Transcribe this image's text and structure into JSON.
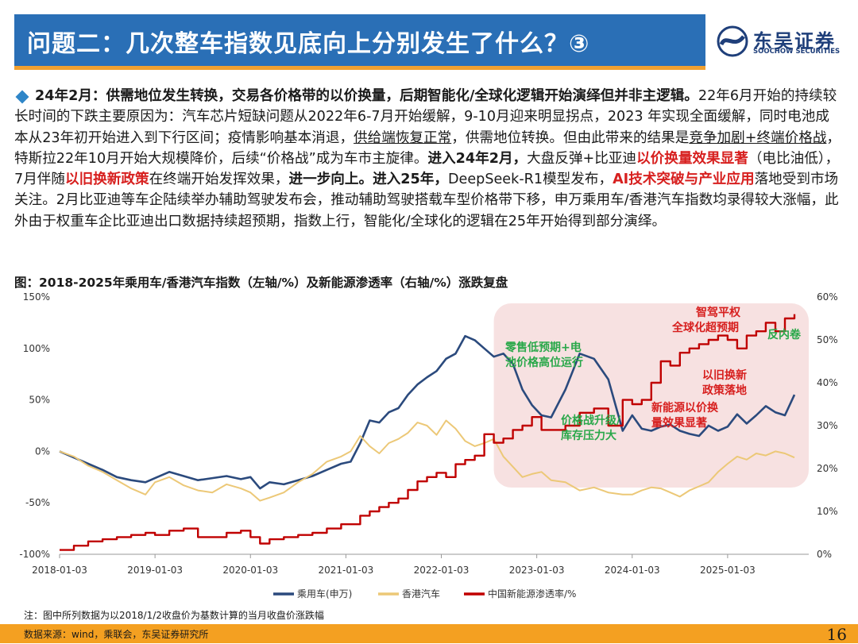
{
  "header": {
    "title": "问题二：几次整车指数见底向上分别发生了什么？③",
    "logo_cn": "东吴证券",
    "logo_en": "SOOCHOW SECURITIES"
  },
  "body": {
    "p1": "24年2月：供需地位发生转换，交易各价格带的以价换量，后期智能化/全球化逻辑开始演绎但并非主逻辑。",
    "p2": "22年6月开始的持续较长时间的下跌主要原因为：汽车芯片短缺问题从2022年6-7月开始缓解，9-10月迎来明显拐点，2023 年实现全面缓解，同时电池成本从23年初开始进入到下行区间；疫情影响基本消退，",
    "p3": "供给端恢复正常",
    "p4": "，供需地位转换。但由此带来的结果是",
    "p5": "竞争加剧+终端价格战",
    "p6": "，特斯拉22年10月开始大规模降价，后续“价格战”成为车市主旋律。",
    "p7": "进入24年2月，",
    "p8": "大盘反弹+比亚迪",
    "p9": "以价换量效果显著",
    "p10": "（电比油低），7月伴随",
    "p11": "以旧换新政策",
    "p12": "在终端开始发挥效果，",
    "p13": "进一步向上。进入25年，",
    "p14": "DeepSeek-R1模型发布，",
    "p15": "AI技术突破与产业应用",
    "p16": "落地受到市场关注。2月比亚迪等车企陆续举办辅助驾驶发布会，推动辅助驾驶搭载车型价格带下移，申万乘用车/香港汽车指数均录得较大涨幅，此外由于权重车企比亚迪出口数据持续超预期，指数上行，智能化/全球化的逻辑在25年开始得到部分演绎。"
  },
  "figure_title": "图：2018-2025年乘用车/香港汽车指数（左轴/%）及新能源渗透率（右轴/%）涨跌复盘",
  "note": "注：图中所列数据为以2018/1/2收盘价为基数计算的当月收盘价涨跌幅",
  "source": "数据来源：wind，乘联会，东吴证券研究所",
  "page_number": "16",
  "colors": {
    "title_bg": "#2a6fb6",
    "accent": "#f4a021",
    "red_text": "#d7201f",
    "series_passenger": "#2b4a7d",
    "series_hk": "#ecc877",
    "series_nev": "#c00000",
    "highlight_fill": "#f6dcdc",
    "annotation_green": "#2aa84a",
    "annotation_red": "#d7201f"
  },
  "chart_data": {
    "type": "line",
    "x_ticks": [
      "2018-01-03",
      "2019-01-03",
      "2020-01-03",
      "2021-01-03",
      "2022-01-03",
      "2023-01-03",
      "2024-01-03",
      "2025-01-03"
    ],
    "y_left_ticks": [
      "150%",
      "100%",
      "50%",
      "0%",
      "-50%",
      "-100%"
    ],
    "y_left_range": [
      -100,
      150
    ],
    "y_right_ticks": [
      "60%",
      "50%",
      "40%",
      "30%",
      "20%",
      "10%",
      "0%"
    ],
    "y_right_range": [
      0,
      60
    ],
    "legend_position": "bottom",
    "series": [
      {
        "name": "乘用车(申万)",
        "axis": "left",
        "x": [
          2018.0,
          2018.15,
          2018.3,
          2018.45,
          2018.6,
          2018.75,
          2018.9,
          2019.0,
          2019.15,
          2019.3,
          2019.45,
          2019.6,
          2019.75,
          2019.9,
          2020.0,
          2020.1,
          2020.2,
          2020.35,
          2020.5,
          2020.65,
          2020.8,
          2020.95,
          2021.05,
          2021.15,
          2021.25,
          2021.35,
          2021.45,
          2021.55,
          2021.65,
          2021.75,
          2021.85,
          2021.95,
          2022.05,
          2022.15,
          2022.25,
          2022.35,
          2022.45,
          2022.55,
          2022.65,
          2022.75,
          2022.85,
          2022.95,
          2023.05,
          2023.15,
          2023.3,
          2023.45,
          2023.6,
          2023.75,
          2023.9,
          2024.0,
          2024.1,
          2024.2,
          2024.3,
          2024.4,
          2024.5,
          2024.6,
          2024.7,
          2024.8,
          2024.9,
          2025.0,
          2025.1,
          2025.2,
          2025.3,
          2025.4,
          2025.5,
          2025.6,
          2025.7
        ],
        "values": [
          0,
          -6,
          -12,
          -18,
          -25,
          -28,
          -30,
          -26,
          -20,
          -24,
          -28,
          -26,
          -24,
          -27,
          -25,
          -36,
          -30,
          -32,
          -28,
          -24,
          -18,
          -12,
          -10,
          8,
          30,
          28,
          38,
          42,
          55,
          65,
          72,
          78,
          90,
          95,
          112,
          108,
          100,
          92,
          95,
          85,
          60,
          45,
          35,
          33,
          60,
          95,
          90,
          70,
          20,
          35,
          22,
          20,
          24,
          26,
          20,
          17,
          15,
          25,
          20,
          24,
          36,
          27,
          35,
          44,
          38,
          35,
          55
        ]
      },
      {
        "name": "香港汽车",
        "axis": "left",
        "x": [
          2018.0,
          2018.15,
          2018.3,
          2018.45,
          2018.6,
          2018.75,
          2018.9,
          2019.0,
          2019.15,
          2019.3,
          2019.45,
          2019.6,
          2019.75,
          2019.9,
          2020.0,
          2020.1,
          2020.2,
          2020.35,
          2020.5,
          2020.65,
          2020.8,
          2020.95,
          2021.05,
          2021.15,
          2021.25,
          2021.35,
          2021.45,
          2021.55,
          2021.65,
          2021.75,
          2021.85,
          2021.95,
          2022.05,
          2022.15,
          2022.25,
          2022.35,
          2022.45,
          2022.55,
          2022.65,
          2022.75,
          2022.85,
          2022.95,
          2023.05,
          2023.15,
          2023.3,
          2023.45,
          2023.6,
          2023.75,
          2023.9,
          2024.0,
          2024.1,
          2024.2,
          2024.3,
          2024.4,
          2024.5,
          2024.6,
          2024.7,
          2024.8,
          2024.9,
          2025.0,
          2025.1,
          2025.2,
          2025.3,
          2025.4,
          2025.5,
          2025.6,
          2025.7
        ],
        "values": [
          0,
          -5,
          -14,
          -20,
          -28,
          -36,
          -42,
          -30,
          -25,
          -33,
          -38,
          -40,
          -32,
          -36,
          -40,
          -48,
          -45,
          -40,
          -30,
          -22,
          -10,
          -5,
          0,
          15,
          5,
          -2,
          8,
          12,
          18,
          28,
          25,
          16,
          30,
          22,
          10,
          5,
          8,
          12,
          -5,
          -15,
          -25,
          -22,
          -20,
          -28,
          -30,
          -38,
          -35,
          -40,
          -42,
          -42,
          -38,
          -35,
          -36,
          -40,
          -44,
          -38,
          -34,
          -30,
          -20,
          -12,
          -5,
          -8,
          -2,
          -4,
          0,
          -2,
          -6
        ]
      },
      {
        "name": "中国新能源渗透率/%",
        "axis": "right",
        "x": [
          2018.0,
          2018.15,
          2018.3,
          2018.45,
          2018.6,
          2018.75,
          2018.9,
          2019.0,
          2019.15,
          2019.3,
          2019.45,
          2019.6,
          2019.75,
          2019.9,
          2020.0,
          2020.1,
          2020.2,
          2020.35,
          2020.5,
          2020.65,
          2020.8,
          2020.95,
          2021.05,
          2021.15,
          2021.25,
          2021.35,
          2021.45,
          2021.55,
          2021.65,
          2021.75,
          2021.85,
          2021.95,
          2022.05,
          2022.15,
          2022.25,
          2022.35,
          2022.45,
          2022.55,
          2022.65,
          2022.75,
          2022.85,
          2022.95,
          2023.05,
          2023.15,
          2023.3,
          2023.45,
          2023.6,
          2023.75,
          2023.9,
          2024.0,
          2024.1,
          2024.2,
          2024.3,
          2024.4,
          2024.5,
          2024.6,
          2024.7,
          2024.8,
          2024.9,
          2025.0,
          2025.1,
          2025.2,
          2025.3,
          2025.4,
          2025.5,
          2025.6,
          2025.7
        ],
        "values": [
          1,
          2,
          3,
          3.5,
          4,
          4.5,
          5,
          4.5,
          5.5,
          6,
          4,
          4,
          5,
          5.5,
          4,
          2.5,
          3.5,
          4,
          4.5,
          5,
          6,
          7,
          7,
          9,
          10,
          11,
          12,
          13,
          15,
          17,
          18,
          19,
          18,
          21,
          22,
          23,
          28,
          26,
          27,
          29,
          30,
          32,
          29,
          29,
          30,
          33,
          34,
          30,
          36,
          35,
          36,
          40,
          45,
          44,
          47,
          48,
          49,
          50,
          51,
          50,
          48,
          51,
          52,
          54,
          52,
          55,
          56
        ]
      }
    ],
    "highlight_region": {
      "x_start": 2022.55,
      "x_end": 2025.85
    },
    "annotations": [
      {
        "text": "零售低预期+电池价格高位运行",
        "line1": "零售低预期+电",
        "line2": "池价格高位运行",
        "color": "green"
      },
      {
        "text": "价格战升级/库存压力大",
        "line1": "价格战升级/",
        "line2": "库存压力大",
        "color": "green"
      },
      {
        "text": "新能源以价换量效果显著",
        "line1": "新能源以价换",
        "line2": "量效果显著",
        "color": "red"
      },
      {
        "text": "以旧换新政策落地",
        "line1": "以旧换新",
        "line2": "政策落地",
        "color": "red"
      },
      {
        "text": "智驾平权全球化超预期",
        "line1": "智驾平权",
        "line2": "全球化超预期",
        "color": "red"
      },
      {
        "text": "反内卷",
        "line1": "反内卷",
        "line2": "",
        "color": "green"
      }
    ]
  }
}
